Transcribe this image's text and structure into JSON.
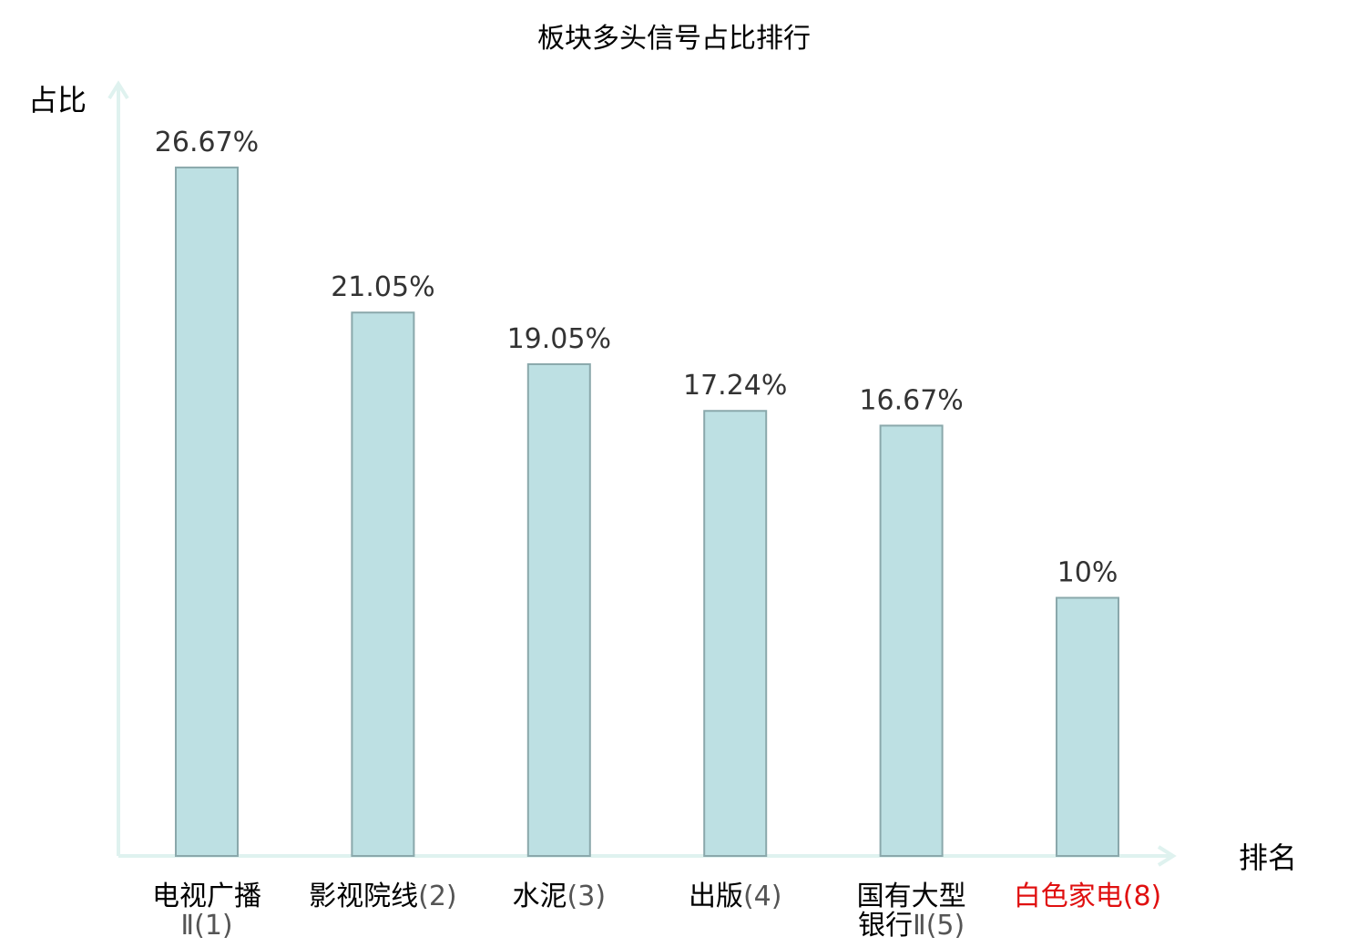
{
  "chart_data": {
    "type": "bar",
    "title": "板块多头信号占比排行",
    "xlabel": "排名",
    "ylabel": "占比",
    "categories": [
      {
        "lines": [
          {
            "name": "电视广播",
            "rank": ""
          },
          {
            "name": "",
            "rank": "Ⅱ(1)"
          }
        ],
        "highlight": false
      },
      {
        "lines": [
          {
            "name": "影视院线",
            "rank": "(2)"
          }
        ],
        "highlight": false
      },
      {
        "lines": [
          {
            "name": "水泥",
            "rank": "(3)"
          }
        ],
        "highlight": false
      },
      {
        "lines": [
          {
            "name": "出版",
            "rank": "(4)"
          }
        ],
        "highlight": false
      },
      {
        "lines": [
          {
            "name": "国有大型",
            "rank": ""
          },
          {
            "name": "银行",
            "rank": "Ⅱ(5)"
          }
        ],
        "highlight": false
      },
      {
        "lines": [
          {
            "name": "白色家电",
            "rank": "(8)"
          }
        ],
        "highlight": true
      }
    ],
    "values": [
      26.67,
      21.05,
      19.05,
      17.24,
      16.67,
      10
    ],
    "value_labels": [
      "26.67%",
      "21.05%",
      "19.05%",
      "17.24%",
      "16.67%",
      "10%"
    ],
    "grid": false,
    "legend": "none",
    "colors": {
      "bar_fill": "#bde0e3",
      "bar_stroke": "#8aa8ab",
      "axis": "#dff2ef",
      "highlight_text": "#e01010",
      "label_text": "#000000",
      "value_text": "#333333"
    }
  }
}
